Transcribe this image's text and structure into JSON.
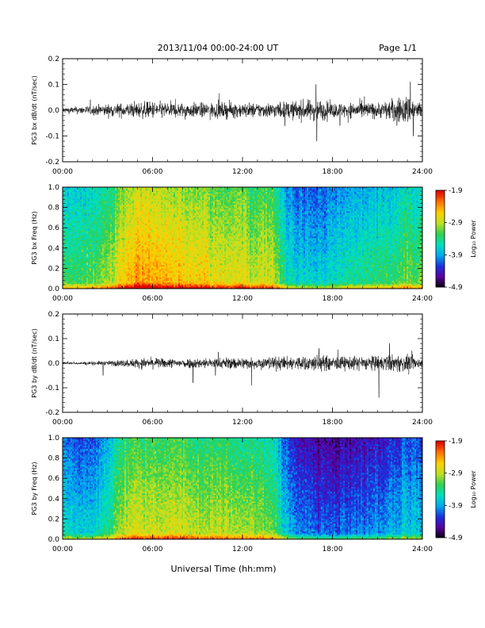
{
  "header": {
    "date_range": "2013/11/04  00:00-24:00 UT",
    "page": "Page 1/1"
  },
  "footer": {
    "xaxis_title": "Universal Time (hh:mm)"
  },
  "colorbar": {
    "ticks": [
      "-1.9",
      "-2.9",
      "-3.9",
      "-4.9"
    ],
    "label": "Log₁₀ Power",
    "colors": [
      "#000000",
      "#5a00a0",
      "#1a30e0",
      "#00a8f0",
      "#00e0c0",
      "#30d050",
      "#c0e020",
      "#ffd000",
      "#ff7000",
      "#e00000"
    ]
  },
  "chart_data": [
    {
      "type": "line",
      "ylabel": "PG3 bx dB/dt (nT/sec)",
      "ylim": [
        -0.2,
        0.2
      ],
      "yticks": [
        "0.2",
        "0.1",
        "0.0",
        "-0.1",
        "-0.2"
      ],
      "xticks": [
        "00:00",
        "06:00",
        "12:00",
        "18:00",
        "24:00"
      ],
      "xlim_hours": [
        0,
        24
      ],
      "envelope": {
        "hours": [
          0,
          1,
          2,
          3,
          4,
          5,
          6,
          7,
          8,
          9,
          10,
          11,
          12,
          13,
          14,
          15,
          16,
          17,
          18,
          19,
          20,
          21,
          22,
          23,
          24
        ],
        "amplitude": [
          0.012,
          0.015,
          0.02,
          0.025,
          0.028,
          0.032,
          0.035,
          0.032,
          0.03,
          0.03,
          0.03,
          0.032,
          0.03,
          0.03,
          0.032,
          0.035,
          0.04,
          0.045,
          0.03,
          0.03,
          0.035,
          0.03,
          0.045,
          0.06,
          0.03
        ]
      },
      "spikes": [
        {
          "hour": 16.9,
          "value": 0.1
        },
        {
          "hour": 16.95,
          "value": -0.12
        },
        {
          "hour": 23.2,
          "value": 0.11
        },
        {
          "hour": 23.4,
          "value": -0.1
        },
        {
          "hour": 22.3,
          "value": -0.06
        },
        {
          "hour": 18.5,
          "value": -0.06
        }
      ]
    },
    {
      "type": "heatmap",
      "ylabel": "PG3 bx Freq (Hz)",
      "ylim": [
        0.0,
        1.0
      ],
      "yticks": [
        "1.0",
        "0.8",
        "0.6",
        "0.4",
        "0.2",
        "0.0"
      ],
      "xticks": [
        "00:00",
        "06:00",
        "12:00",
        "18:00",
        "24:00"
      ],
      "xlim_hours": [
        0,
        24
      ],
      "zlim": [
        -4.9,
        -1.9
      ],
      "zlabel": "Log₁₀ Power",
      "power_profile": {
        "hours": [
          0,
          1,
          2,
          3,
          4,
          5,
          6,
          7,
          8,
          9,
          10,
          11,
          12,
          13,
          14,
          15,
          16,
          17,
          18,
          19,
          20,
          21,
          22,
          23,
          24
        ],
        "log10_power_at_0.5hz": [
          -3.5,
          -3.4,
          -3.4,
          -3.2,
          -2.8,
          -2.6,
          -2.6,
          -2.7,
          -2.7,
          -2.8,
          -2.9,
          -2.9,
          -2.9,
          -3.0,
          -3.0,
          -3.7,
          -3.9,
          -3.9,
          -3.8,
          -3.7,
          -3.6,
          -3.6,
          -3.5,
          -3.3,
          -3.4
        ]
      }
    },
    {
      "type": "line",
      "ylabel": "PG3 by dB/dt (nT/sec)",
      "ylim": [
        -0.2,
        0.2
      ],
      "yticks": [
        "0.2",
        "0.1",
        "0.0",
        "-0.1",
        "-0.2"
      ],
      "xticks": [
        "00:00",
        "06:00",
        "12:00",
        "18:00",
        "24:00"
      ],
      "xlim_hours": [
        0,
        24
      ],
      "envelope": {
        "hours": [
          0,
          1,
          2,
          3,
          4,
          5,
          6,
          7,
          8,
          9,
          10,
          11,
          12,
          13,
          14,
          15,
          16,
          17,
          18,
          19,
          20,
          21,
          22,
          23,
          24
        ],
        "amplitude": [
          0.005,
          0.006,
          0.008,
          0.01,
          0.015,
          0.02,
          0.022,
          0.02,
          0.02,
          0.022,
          0.022,
          0.025,
          0.025,
          0.025,
          0.028,
          0.028,
          0.03,
          0.035,
          0.03,
          0.028,
          0.03,
          0.03,
          0.035,
          0.035,
          0.02
        ]
      },
      "spikes": [
        {
          "hour": 2.7,
          "value": -0.05
        },
        {
          "hour": 8.7,
          "value": -0.08
        },
        {
          "hour": 12.6,
          "value": -0.09
        },
        {
          "hour": 21.1,
          "value": -0.14
        },
        {
          "hour": 21.8,
          "value": 0.08
        },
        {
          "hour": 17.1,
          "value": 0.06
        },
        {
          "hour": 10.2,
          "value": -0.05
        },
        {
          "hour": 23.3,
          "value": 0.05
        }
      ]
    },
    {
      "type": "heatmap",
      "ylabel": "PG3 by Freq (Hz)",
      "ylim": [
        0.0,
        1.0
      ],
      "yticks": [
        "1.0",
        "0.8",
        "0.6",
        "0.4",
        "0.2",
        "0.0"
      ],
      "xticks": [
        "00:00",
        "06:00",
        "12:00",
        "18:00",
        "24:00"
      ],
      "xlim_hours": [
        0,
        24
      ],
      "zlim": [
        -4.9,
        -1.9
      ],
      "zlabel": "Log₁₀ Power",
      "power_profile": {
        "hours": [
          0,
          1,
          2,
          3,
          4,
          5,
          6,
          7,
          8,
          9,
          10,
          11,
          12,
          13,
          14,
          15,
          16,
          17,
          18,
          19,
          20,
          21,
          22,
          23,
          24
        ],
        "log10_power_at_0.5hz": [
          -3.8,
          -3.9,
          -3.9,
          -3.6,
          -3.1,
          -3.0,
          -3.0,
          -3.0,
          -3.0,
          -3.1,
          -3.1,
          -3.1,
          -3.2,
          -3.2,
          -3.3,
          -4.0,
          -4.2,
          -4.3,
          -4.3,
          -4.3,
          -4.2,
          -4.2,
          -4.1,
          -3.9,
          -3.9
        ]
      }
    }
  ]
}
